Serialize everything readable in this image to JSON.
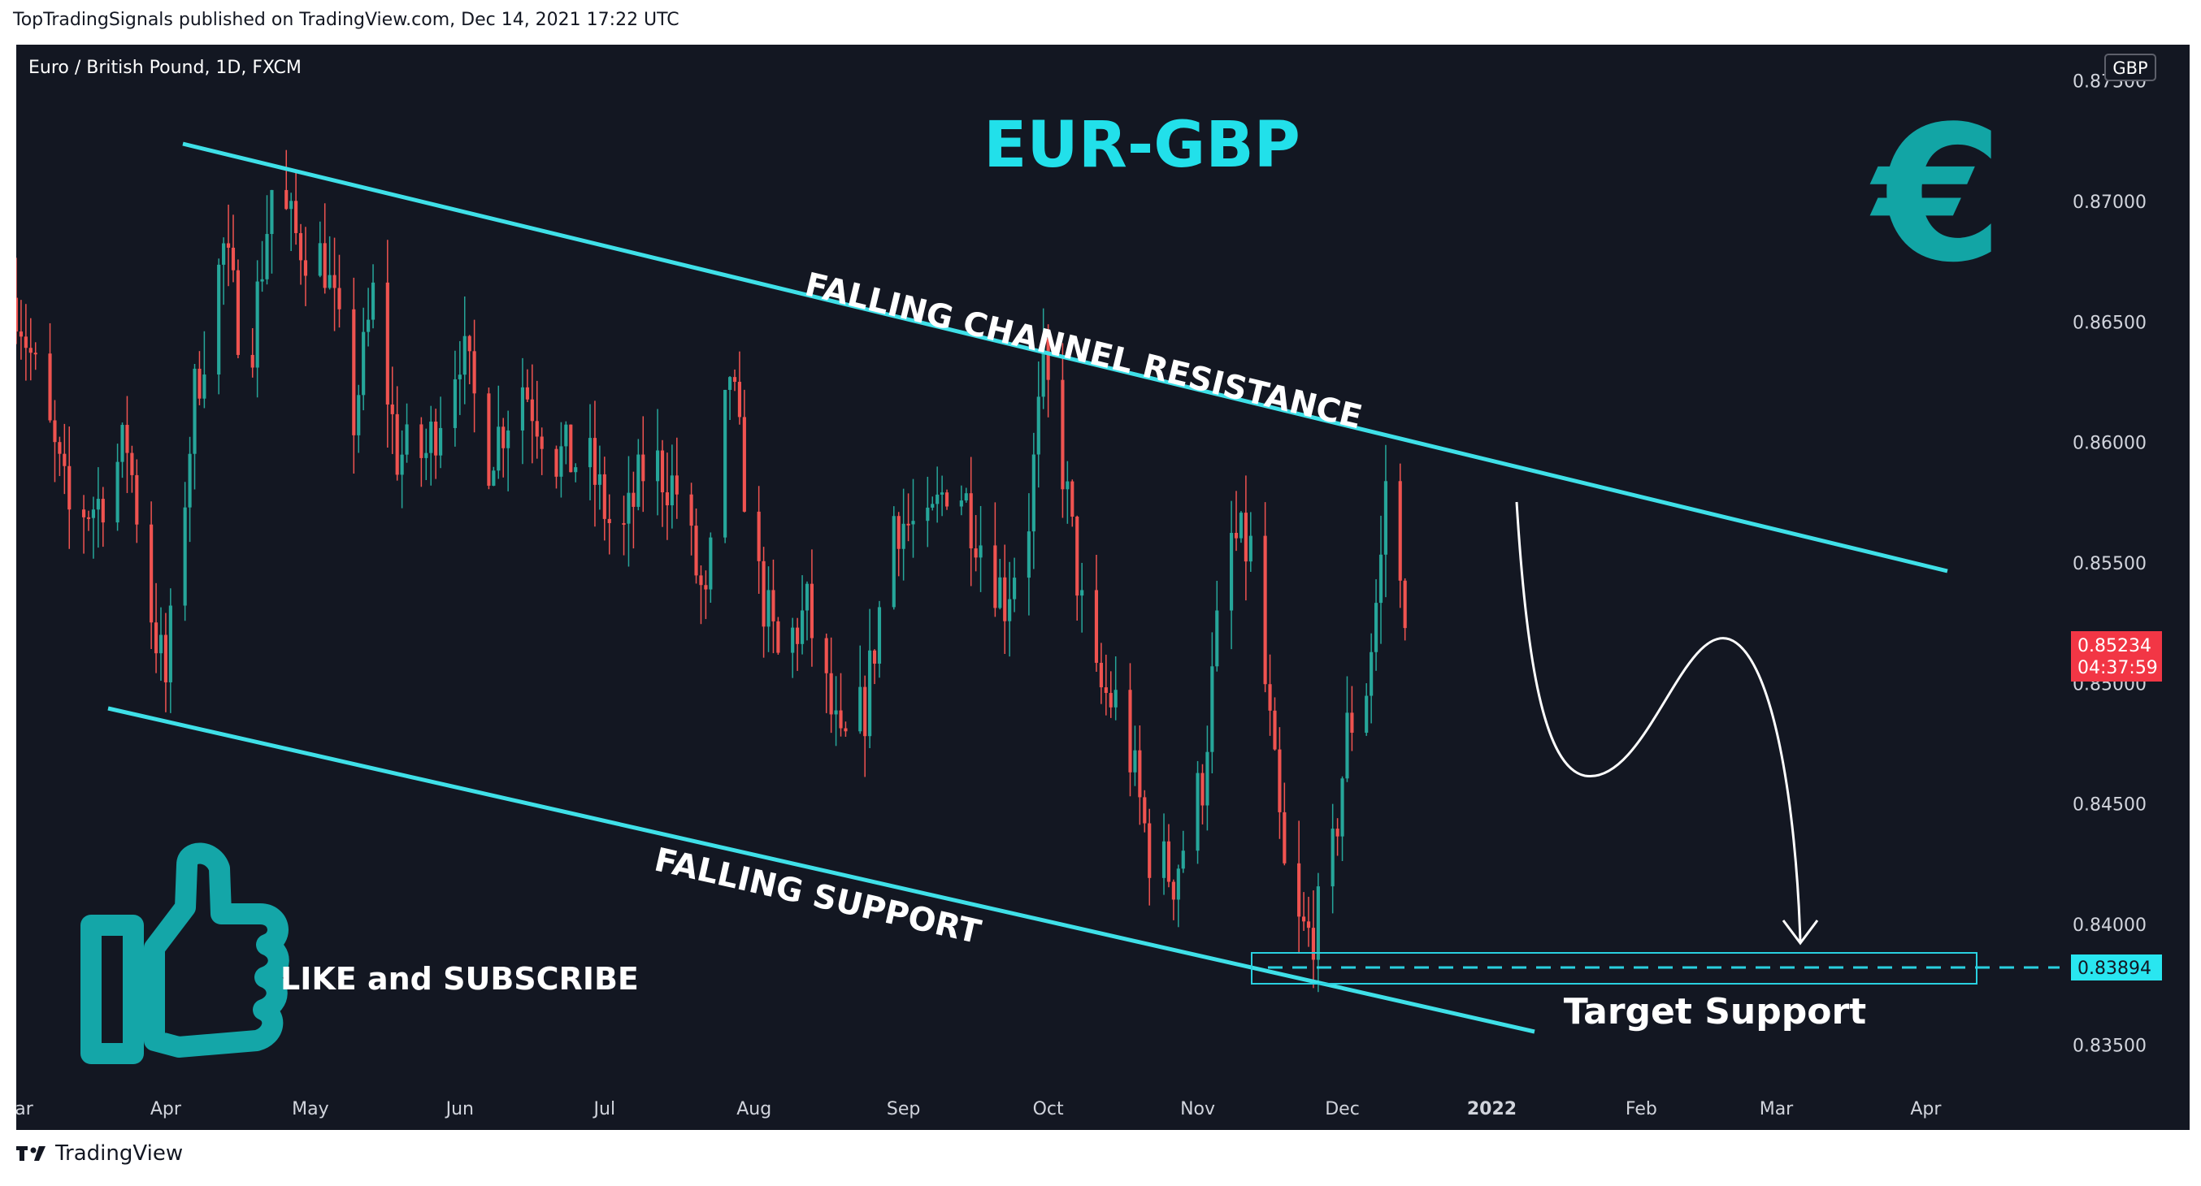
{
  "header": {
    "published_by": "TopTradingSignals published on TradingView.com, Dec 14, 2021 17:22 UTC"
  },
  "footer": {
    "brand": "TradingView"
  },
  "colors": {
    "background": "#131722",
    "up_candle": "#26a69a",
    "down_candle": "#ef5350",
    "channel_line": "#3fe0e8",
    "title": "#22e0ea",
    "euro_icon": "#12a5a5",
    "thumb_icon": "#14a6a8",
    "price_badge": "#f23645",
    "target_badge": "#29e6f0"
  },
  "chart_data": {
    "type": "candlestick",
    "title": "EUR-GBP",
    "symbol": "Euro / British Pound, 1D, FXCM",
    "currency": "GBP",
    "xlabel": "",
    "ylabel": "",
    "ylim": [
      0.8335,
      0.8765
    ],
    "xlim_days": [
      0,
      417
    ],
    "grid": false,
    "y_ticks": [
      "0.87500",
      "0.87000",
      "0.86500",
      "0.86000",
      "0.85500",
      "0.85000",
      "0.84500",
      "0.84000",
      "0.83500"
    ],
    "y_tick_values": [
      0.875,
      0.87,
      0.865,
      0.86,
      0.855,
      0.85,
      0.845,
      0.84,
      0.835
    ],
    "x_ticks": [
      {
        "label": "Mar",
        "date": "2021-03-01"
      },
      {
        "label": "Apr",
        "date": "2021-04-01"
      },
      {
        "label": "May",
        "date": "2021-05-01"
      },
      {
        "label": "Jun",
        "date": "2021-06-01"
      },
      {
        "label": "Jul",
        "date": "2021-07-01"
      },
      {
        "label": "Aug",
        "date": "2021-08-01"
      },
      {
        "label": "Sep",
        "date": "2021-09-01"
      },
      {
        "label": "Oct",
        "date": "2021-10-01"
      },
      {
        "label": "Nov",
        "date": "2021-11-01"
      },
      {
        "label": "Dec",
        "date": "2021-12-01"
      },
      {
        "label": "2022",
        "date": "2022-01-01"
      },
      {
        "label": "Feb",
        "date": "2022-02-01"
      },
      {
        "label": "Mar",
        "date": "2022-03-01"
      },
      {
        "label": "Apr",
        "date": "2022-04-01"
      }
    ],
    "current_price": {
      "value": "0.85234",
      "countdown": "04:37:59"
    },
    "target_price": {
      "value": "0.83894"
    },
    "close_anchors": [
      {
        "date": "2021-03-01",
        "close": 0.866
      },
      {
        "date": "2021-03-06",
        "close": 0.862
      },
      {
        "date": "2021-03-12",
        "close": 0.857
      },
      {
        "date": "2021-03-18",
        "close": 0.8575
      },
      {
        "date": "2021-03-24",
        "close": 0.86
      },
      {
        "date": "2021-03-29",
        "close": 0.853
      },
      {
        "date": "2021-04-01",
        "close": 0.85
      },
      {
        "date": "2021-04-07",
        "close": 0.862
      },
      {
        "date": "2021-04-13",
        "close": 0.868
      },
      {
        "date": "2021-04-18",
        "close": 0.863
      },
      {
        "date": "2021-04-23",
        "close": 0.8705
      },
      {
        "date": "2021-04-28",
        "close": 0.8685
      },
      {
        "date": "2021-05-04",
        "close": 0.8675
      },
      {
        "date": "2021-05-10",
        "close": 0.861
      },
      {
        "date": "2021-05-14",
        "close": 0.866
      },
      {
        "date": "2021-05-19",
        "close": 0.8595
      },
      {
        "date": "2021-05-25",
        "close": 0.8595
      },
      {
        "date": "2021-06-01",
        "close": 0.864
      },
      {
        "date": "2021-06-07",
        "close": 0.8595
      },
      {
        "date": "2021-06-14",
        "close": 0.8625
      },
      {
        "date": "2021-06-21",
        "close": 0.8595
      },
      {
        "date": "2021-06-28",
        "close": 0.859
      },
      {
        "date": "2021-07-04",
        "close": 0.8555
      },
      {
        "date": "2021-07-10",
        "close": 0.8595
      },
      {
        "date": "2021-07-16",
        "close": 0.858
      },
      {
        "date": "2021-07-22",
        "close": 0.853
      },
      {
        "date": "2021-07-27",
        "close": 0.863
      },
      {
        "date": "2021-08-01",
        "close": 0.855
      },
      {
        "date": "2021-08-06",
        "close": 0.851
      },
      {
        "date": "2021-08-12",
        "close": 0.853
      },
      {
        "date": "2021-08-19",
        "close": 0.847
      },
      {
        "date": "2021-08-24",
        "close": 0.849
      },
      {
        "date": "2021-08-30",
        "close": 0.857
      },
      {
        "date": "2021-09-06",
        "close": 0.856
      },
      {
        "date": "2021-09-11",
        "close": 0.859
      },
      {
        "date": "2021-09-16",
        "close": 0.8565
      },
      {
        "date": "2021-09-22",
        "close": 0.8535
      },
      {
        "date": "2021-09-27",
        "close": 0.857
      },
      {
        "date": "2021-09-30",
        "close": 0.863
      },
      {
        "date": "2021-10-04",
        "close": 0.859
      },
      {
        "date": "2021-10-10",
        "close": 0.85
      },
      {
        "date": "2021-10-16",
        "close": 0.849
      },
      {
        "date": "2021-10-22",
        "close": 0.843
      },
      {
        "date": "2021-10-27",
        "close": 0.842
      },
      {
        "date": "2021-11-02",
        "close": 0.846
      },
      {
        "date": "2021-11-07",
        "close": 0.856
      },
      {
        "date": "2021-11-12",
        "close": 0.8555
      },
      {
        "date": "2021-11-16",
        "close": 0.848
      },
      {
        "date": "2021-11-20",
        "close": 0.84
      },
      {
        "date": "2021-11-24",
        "close": 0.8395
      },
      {
        "date": "2021-11-28",
        "close": 0.841
      },
      {
        "date": "2021-12-02",
        "close": 0.848
      },
      {
        "date": "2021-12-06",
        "close": 0.85
      },
      {
        "date": "2021-12-09",
        "close": 0.855
      },
      {
        "date": "2021-12-10",
        "close": 0.8585
      },
      {
        "date": "2021-12-14",
        "close": 0.8523
      }
    ],
    "trendlines": [
      {
        "name": "FALLING CHANNEL RESISTANCE",
        "from": {
          "date": "2021-03-28",
          "price": 0.8734
        },
        "to": {
          "date": "2022-03-21",
          "price": 0.8555
        }
      },
      {
        "name": "FALLING SUPPORT",
        "from": {
          "date": "2021-03-22",
          "price": 0.8498
        },
        "to": {
          "date": "2021-12-31",
          "price": 0.8365
        }
      }
    ],
    "annotations": [
      {
        "text": "FALLING CHANNEL RESISTANCE"
      },
      {
        "text": "FALLING SUPPORT"
      },
      {
        "text": "Target Support"
      },
      {
        "text": "LIKE and SUBSCRIBE"
      }
    ],
    "target_zone": {
      "from_date": "2021-11-01",
      "to_date": "2022-03-22",
      "price_low": 0.8382,
      "price_high": 0.8397
    }
  }
}
